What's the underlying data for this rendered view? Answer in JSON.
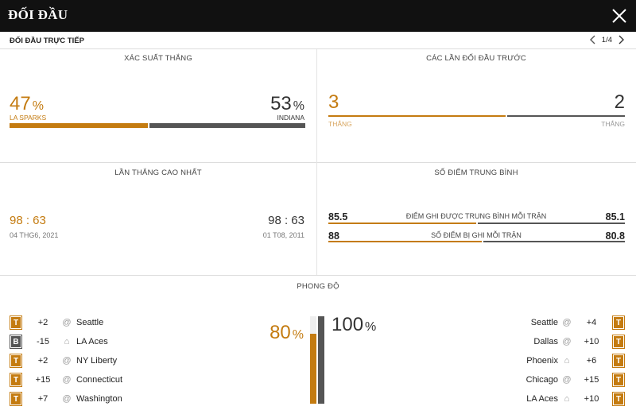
{
  "header": {
    "title": "ĐỐI ĐẦU",
    "close_icon": "close-icon"
  },
  "subheader": {
    "title": "ĐỐI ĐẦU TRỰC TIẾP",
    "page": "1/4"
  },
  "colors": {
    "home": "#c47b10",
    "away": "#555555"
  },
  "win_prob": {
    "title": "XÁC SUẤT THẮNG",
    "home_value": "47",
    "home_unit": "%",
    "home_name": "LA SPARKS",
    "away_value": "53",
    "away_unit": "%",
    "away_name": "INDIANA",
    "home_fraction": 0.47
  },
  "prev_meetings": {
    "title": "CÁC LẦN ĐỐI ĐẦU TRƯỚC",
    "home_wins": "3",
    "home_label": "THẮNG",
    "away_wins": "2",
    "away_label": "THẮNG",
    "home_fraction": 0.6
  },
  "biggest_win": {
    "title": "LẦN THẮNG CAO NHẤT",
    "home_score": "98 : 63",
    "home_date": "04 THG6, 2021",
    "away_score": "98 : 63",
    "away_date": "01 T08, 2011"
  },
  "avg_points": {
    "title": "SỐ ĐIỂM TRUNG BÌNH",
    "rows": [
      {
        "home": "85.5",
        "label": "ĐIỂM GHI ĐƯỢC TRUNG BÌNH MỖI TRẬN",
        "away": "85.1",
        "home_fraction": 0.5
      },
      {
        "home": "88",
        "label": "SỐ ĐIỂM BỊ GHI MỖI TRẬN",
        "away": "80.8",
        "home_fraction": 0.52
      }
    ]
  },
  "form": {
    "title": "PHONG ĐỘ",
    "home_pct": "80",
    "home_unit": "%",
    "home_fraction": 0.8,
    "away_pct": "100",
    "away_unit": "%",
    "away_fraction": 1.0,
    "home_games": [
      {
        "result": "T",
        "diff": "+2",
        "venue": "away",
        "opponent": "Seattle"
      },
      {
        "result": "B",
        "diff": "-15",
        "venue": "home",
        "opponent": "LA Aces"
      },
      {
        "result": "T",
        "diff": "+2",
        "venue": "away",
        "opponent": "NY Liberty"
      },
      {
        "result": "T",
        "diff": "+15",
        "venue": "away",
        "opponent": "Connecticut"
      },
      {
        "result": "T",
        "diff": "+7",
        "venue": "away",
        "opponent": "Washington"
      }
    ],
    "away_games": [
      {
        "result": "T",
        "diff": "+4",
        "venue": "away",
        "opponent": "Seattle"
      },
      {
        "result": "T",
        "diff": "+10",
        "venue": "away",
        "opponent": "Dallas"
      },
      {
        "result": "T",
        "diff": "+6",
        "venue": "home",
        "opponent": "Phoenix"
      },
      {
        "result": "T",
        "diff": "+15",
        "venue": "away",
        "opponent": "Chicago"
      },
      {
        "result": "T",
        "diff": "+10",
        "venue": "home",
        "opponent": "LA Aces"
      }
    ]
  }
}
